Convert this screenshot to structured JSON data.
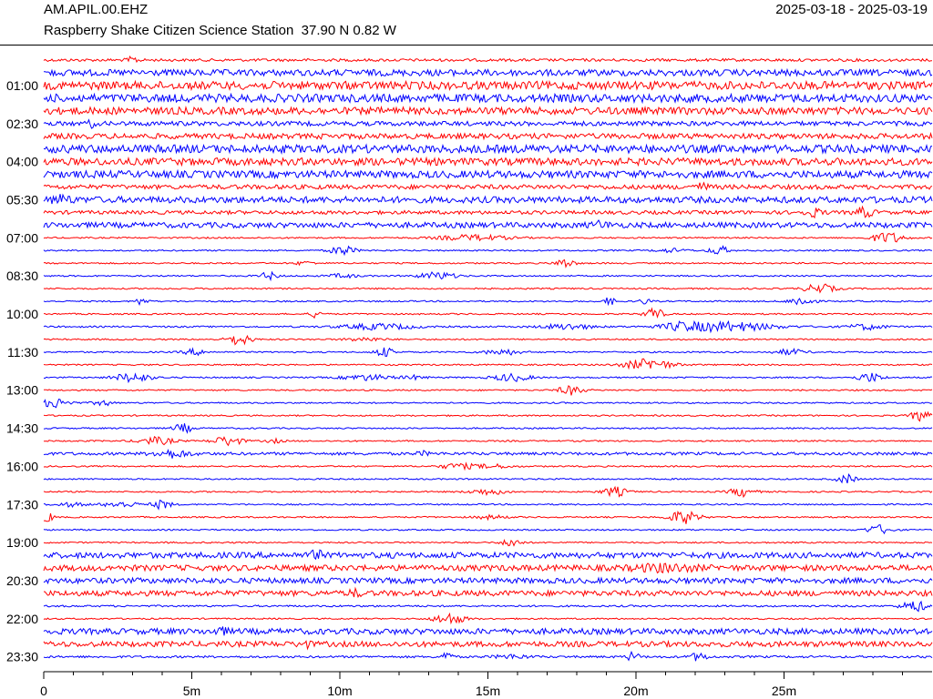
{
  "header": {
    "station": "AM.APIL.00.EHZ",
    "date_range": "2025-03-18 - 2025-03-19",
    "description": "Raspberry Shake Citizen Science Station  37.90 N 0.82 W"
  },
  "chart_data": {
    "type": "line",
    "title": "AM.APIL.00.EHZ",
    "subtitle": "Raspberry Shake Citizen Science Station  37.90 N 0.82 W",
    "xlabel": "",
    "ylabel": "",
    "xlim": [
      0,
      30
    ],
    "x_ticks": [
      {
        "value": 0,
        "label": "0"
      },
      {
        "value": 5,
        "label": "5m"
      },
      {
        "value": 10,
        "label": "10m"
      },
      {
        "value": 15,
        "label": "15m"
      },
      {
        "value": 20,
        "label": "20m"
      },
      {
        "value": 25,
        "label": "25m"
      }
    ],
    "x_minor_tick_step": 1,
    "row_minutes": 30,
    "y_tick_labels": [
      "01:00",
      "02:30",
      "04:00",
      "05:30",
      "07:00",
      "08:30",
      "10:00",
      "11:30",
      "13:00",
      "14:30",
      "16:00",
      "17:30",
      "19:00",
      "20:30",
      "22:00",
      "23:30"
    ],
    "trace_colors": [
      "#ff0000",
      "#0000ff"
    ],
    "rows": [
      {
        "start": "00:00",
        "color": "#ff0000",
        "noise": 1.5,
        "events": [
          [
            3,
            3,
            0.2
          ]
        ]
      },
      {
        "start": "00:30",
        "color": "#0000ff",
        "noise": 3.5,
        "events": []
      },
      {
        "start": "01:00",
        "color": "#ff0000",
        "noise": 4.5,
        "events": []
      },
      {
        "start": "01:30",
        "color": "#0000ff",
        "noise": 4.5,
        "events": []
      },
      {
        "start": "02:00",
        "color": "#ff0000",
        "noise": 4.0,
        "events": []
      },
      {
        "start": "02:30",
        "color": "#0000ff",
        "noise": 2.5,
        "events": [
          [
            1.6,
            4,
            0.1
          ]
        ]
      },
      {
        "start": "03:00",
        "color": "#ff0000",
        "noise": 3.0,
        "events": []
      },
      {
        "start": "03:30",
        "color": "#0000ff",
        "noise": 4.5,
        "events": []
      },
      {
        "start": "04:00",
        "color": "#ff0000",
        "noise": 4.0,
        "events": []
      },
      {
        "start": "04:30",
        "color": "#0000ff",
        "noise": 4.0,
        "events": []
      },
      {
        "start": "05:00",
        "color": "#ff0000",
        "noise": 2.5,
        "events": [
          [
            22.2,
            3,
            0.3
          ]
        ]
      },
      {
        "start": "05:30",
        "color": "#0000ff",
        "noise": 3.5,
        "events": [
          [
            0.6,
            4,
            0.3
          ]
        ]
      },
      {
        "start": "06:00",
        "color": "#ff0000",
        "noise": 2.0,
        "events": [
          [
            26,
            4,
            0.3
          ],
          [
            27.7,
            5,
            0.3
          ]
        ]
      },
      {
        "start": "06:30",
        "color": "#0000ff",
        "noise": 3.0,
        "events": [
          [
            18.8,
            3,
            0.3
          ]
        ]
      },
      {
        "start": "07:00",
        "color": "#ff0000",
        "noise": 0.8,
        "events": [
          [
            14.5,
            3,
            1.2
          ],
          [
            28.5,
            6,
            0.5
          ]
        ]
      },
      {
        "start": "07:30",
        "color": "#0000ff",
        "noise": 0.8,
        "events": [
          [
            10.1,
            5,
            0.4
          ],
          [
            22.8,
            5,
            0.3
          ],
          [
            21.2,
            2,
            0.5
          ]
        ]
      },
      {
        "start": "08:00",
        "color": "#ff0000",
        "noise": 0.8,
        "events": [
          [
            17.6,
            5,
            0.3
          ],
          [
            8.8,
            2,
            0.3
          ]
        ]
      },
      {
        "start": "08:30",
        "color": "#0000ff",
        "noise": 0.8,
        "events": [
          [
            7.6,
            4,
            0.3
          ],
          [
            13.3,
            4,
            0.6
          ],
          [
            10.1,
            2,
            0.5
          ]
        ]
      },
      {
        "start": "09:00",
        "color": "#ff0000",
        "noise": 0.8,
        "events": [
          [
            26.2,
            5,
            0.5
          ]
        ]
      },
      {
        "start": "09:30",
        "color": "#0000ff",
        "noise": 0.8,
        "events": [
          [
            3.3,
            4,
            0.2
          ],
          [
            19.1,
            4,
            0.2
          ],
          [
            20.3,
            3,
            0.2
          ],
          [
            25.6,
            5,
            0.4
          ]
        ]
      },
      {
        "start": "10:00",
        "color": "#ff0000",
        "noise": 0.8,
        "events": [
          [
            9.2,
            4,
            0.2
          ],
          [
            20.6,
            7,
            0.3
          ]
        ]
      },
      {
        "start": "10:30",
        "color": "#0000ff",
        "noise": 0.9,
        "events": [
          [
            11.3,
            3,
            1.2
          ],
          [
            17.7,
            3,
            0.8
          ],
          [
            23.0,
            5,
            1.6
          ],
          [
            21.5,
            3,
            0.6
          ],
          [
            27.8,
            3,
            0.6
          ]
        ]
      },
      {
        "start": "11:00",
        "color": "#ff0000",
        "noise": 0.8,
        "events": [
          [
            6.6,
            6,
            0.4
          ],
          [
            10.8,
            2,
            0.6
          ]
        ]
      },
      {
        "start": "11:30",
        "color": "#0000ff",
        "noise": 0.8,
        "events": [
          [
            5.1,
            3,
            0.4
          ],
          [
            11.5,
            5,
            0.3
          ],
          [
            15.5,
            3,
            0.6
          ],
          [
            25.2,
            3,
            0.5
          ]
        ]
      },
      {
        "start": "12:00",
        "color": "#ff0000",
        "noise": 0.8,
        "events": [
          [
            20.4,
            6,
            0.8
          ]
        ]
      },
      {
        "start": "12:30",
        "color": "#0000ff",
        "noise": 0.8,
        "events": [
          [
            3.0,
            5,
            0.6
          ],
          [
            10.9,
            3,
            0.8
          ],
          [
            15.8,
            4,
            0.6
          ],
          [
            27.9,
            5,
            0.4
          ],
          [
            12.5,
            2,
            0.4
          ]
        ]
      },
      {
        "start": "13:00",
        "color": "#ff0000",
        "noise": 0.8,
        "events": [
          [
            17.8,
            5,
            0.4
          ]
        ]
      },
      {
        "start": "13:30",
        "color": "#0000ff",
        "noise": 0.8,
        "events": [
          [
            0.4,
            5,
            0.5
          ],
          [
            2.0,
            3,
            0.3
          ]
        ]
      },
      {
        "start": "14:00",
        "color": "#ff0000",
        "noise": 0.8,
        "events": [
          [
            29.6,
            6,
            0.3
          ]
        ]
      },
      {
        "start": "14:30",
        "color": "#0000ff",
        "noise": 0.8,
        "events": [
          [
            4.7,
            5,
            0.3
          ]
        ]
      },
      {
        "start": "15:00",
        "color": "#ff0000",
        "noise": 0.8,
        "events": [
          [
            3.8,
            4,
            0.6
          ],
          [
            6.2,
            5,
            0.5
          ],
          [
            7.8,
            2,
            0.3
          ]
        ]
      },
      {
        "start": "15:30",
        "color": "#0000ff",
        "noise": 1.6,
        "events": [
          [
            4.3,
            4,
            0.6
          ],
          [
            12.8,
            2,
            0.2
          ]
        ]
      },
      {
        "start": "16:00",
        "color": "#ff0000",
        "noise": 0.8,
        "events": [
          [
            14.0,
            3,
            0.6
          ],
          [
            15.2,
            2,
            0.6
          ]
        ]
      },
      {
        "start": "16:30",
        "color": "#0000ff",
        "noise": 0.8,
        "events": [
          [
            27.1,
            5,
            0.3
          ]
        ]
      },
      {
        "start": "17:00",
        "color": "#ff0000",
        "noise": 0.8,
        "events": [
          [
            15.0,
            3,
            0.6
          ],
          [
            19.3,
            5,
            0.4
          ],
          [
            23.6,
            5,
            0.4
          ]
        ]
      },
      {
        "start": "17:30",
        "color": "#0000ff",
        "noise": 0.8,
        "events": [
          [
            2.6,
            3,
            0.6
          ],
          [
            4.0,
            5,
            0.3
          ],
          [
            0.9,
            2,
            0.5
          ]
        ]
      },
      {
        "start": "18:00",
        "color": "#ff0000",
        "noise": 0.8,
        "events": [
          [
            0.1,
            6,
            0.2
          ],
          [
            21.6,
            7,
            0.5
          ],
          [
            15.1,
            2,
            0.5
          ]
        ]
      },
      {
        "start": "18:30",
        "color": "#0000ff",
        "noise": 0.8,
        "events": [
          [
            28.2,
            5,
            0.4
          ]
        ]
      },
      {
        "start": "19:00",
        "color": "#ff0000",
        "noise": 0.8,
        "events": [
          [
            15.8,
            5,
            0.3
          ]
        ]
      },
      {
        "start": "19:30",
        "color": "#0000ff",
        "noise": 3.2,
        "events": [
          [
            9.2,
            4,
            0.2
          ]
        ]
      },
      {
        "start": "20:00",
        "color": "#ff0000",
        "noise": 3.2,
        "events": [
          [
            21.0,
            3,
            1.0
          ]
        ]
      },
      {
        "start": "20:30",
        "color": "#0000ff",
        "noise": 3.0,
        "events": []
      },
      {
        "start": "21:00",
        "color": "#ff0000",
        "noise": 3.0,
        "events": [
          [
            10.5,
            3,
            0.2
          ]
        ]
      },
      {
        "start": "21:30",
        "color": "#0000ff",
        "noise": 1.0,
        "events": [
          [
            29.4,
            6,
            0.4
          ]
        ]
      },
      {
        "start": "22:00",
        "color": "#ff0000",
        "noise": 0.8,
        "events": [
          [
            13.7,
            6,
            0.5
          ]
        ]
      },
      {
        "start": "22:30",
        "color": "#0000ff",
        "noise": 3.2,
        "events": [
          [
            6.0,
            3,
            0.2
          ]
        ]
      },
      {
        "start": "23:00",
        "color": "#ff0000",
        "noise": 3.0,
        "events": [
          [
            8.8,
            3,
            0.2
          ]
        ]
      },
      {
        "start": "23:30",
        "color": "#0000ff",
        "noise": 1.2,
        "events": [
          [
            13.6,
            5,
            0.2
          ],
          [
            19.9,
            5,
            0.2
          ],
          [
            22.1,
            4,
            0.3
          ],
          [
            15.8,
            2,
            0.6
          ]
        ]
      }
    ]
  }
}
